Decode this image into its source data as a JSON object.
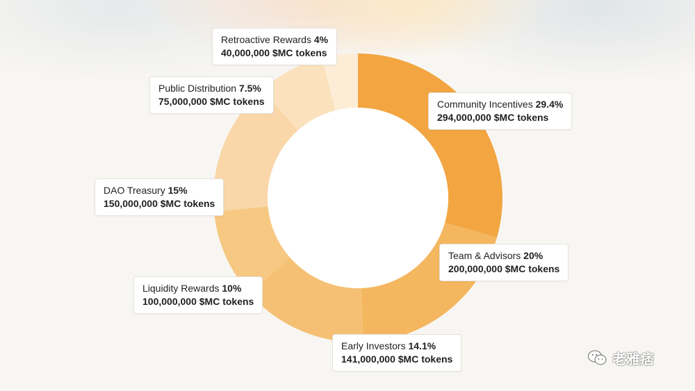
{
  "chart_data": {
    "type": "pie",
    "title": "",
    "segments": [
      {
        "name": "Community Incentives",
        "percent_label": "29.4%",
        "value": 29.4,
        "tokens": "294,000,000 $MC tokens",
        "color": "#f2a541"
      },
      {
        "name": "Team & Advisors",
        "percent_label": "20%",
        "value": 20,
        "tokens": "200,000,000 $MC tokens",
        "color": "#f4b65e"
      },
      {
        "name": "Early Investors",
        "percent_label": "14.1%",
        "value": 14.1,
        "tokens": "141,000,000 $MC tokens",
        "color": "#f5c073"
      },
      {
        "name": "Liquidity Rewards",
        "percent_label": "10%",
        "value": 10,
        "tokens": "100,000,000 $MC tokens",
        "color": "#f6c882"
      },
      {
        "name": "DAO Treasury",
        "percent_label": "15%",
        "value": 15,
        "tokens": "150,000,000 $MC tokens",
        "color": "#f9d7a8"
      },
      {
        "name": "Public Distribution",
        "percent_label": "7.5%",
        "value": 7.5,
        "tokens": "75,000,000 $MC tokens",
        "color": "#fbe1bd"
      },
      {
        "name": "Retroactive Rewards",
        "percent_label": "4%",
        "value": 4,
        "tokens": "40,000,000 $MC tokens",
        "color": "#fdedd6"
      }
    ],
    "hole": "donut",
    "legend": "callout-labels"
  },
  "watermark": {
    "text": "老雅痞",
    "icon": "wechat-icon"
  }
}
